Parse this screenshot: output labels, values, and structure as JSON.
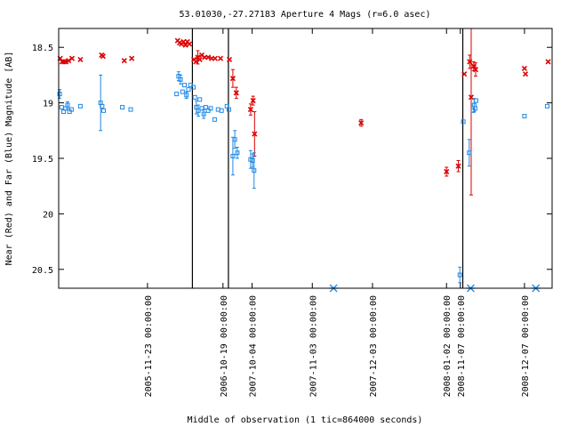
{
  "chart_data": {
    "type": "scatter",
    "title": "53.01030,-27.27183   Aperture 4 Mags (r=6.0 asec)",
    "xlabel": "Middle of observation (1 tic=864000 seconds)",
    "ylabel": "Near (Red) and Far (Blue) Magnitude [AB]",
    "ylim": [
      20.67,
      18.33
    ],
    "y_ticks": [
      18.5,
      19,
      19.5,
      20,
      20.5
    ],
    "y_tick_labels": [
      "18.5",
      "19",
      "19.5",
      "20",
      "20.5"
    ],
    "xlim": [
      0,
      100
    ],
    "x_ticks": [
      {
        "x": 18.0,
        "label": "2005-11-23 00:00:00"
      },
      {
        "x": 33.3,
        "label": "2006-10-19 00:00:00"
      },
      {
        "x": 39.2,
        "label": "2007-10-04 00:00:00"
      },
      {
        "x": 51.4,
        "label": "2007-11-03 00:00:00"
      },
      {
        "x": 63.6,
        "label": "2007-12-03 00:00:00"
      },
      {
        "x": 78.6,
        "label": "2008-01-02 00:00:00"
      },
      {
        "x": 81.4,
        "label": "2008-11-07 00:00:00"
      },
      {
        "x": 94.4,
        "label": "2008-12-07 00:00:00"
      }
    ],
    "separators_x": [
      27.1,
      34.4,
      81.9
    ],
    "series": [
      {
        "color": "#dd0000",
        "marker": "x",
        "points": [
          {
            "x": 0.3,
            "y": 18.6
          },
          {
            "x": 0.7,
            "y": 18.63
          },
          {
            "x": 1.1,
            "y": 18.63
          },
          {
            "x": 1.5,
            "y": 18.63
          },
          {
            "x": 2.0,
            "y": 18.62
          },
          {
            "x": 2.7,
            "y": 18.6
          },
          {
            "x": 4.4,
            "y": 18.61
          },
          {
            "x": 8.7,
            "y": 18.57
          },
          {
            "x": 9.0,
            "y": 18.58
          },
          {
            "x": 13.3,
            "y": 18.62
          },
          {
            "x": 14.8,
            "y": 18.6
          },
          {
            "x": 24.1,
            "y": 18.44
          },
          {
            "x": 24.5,
            "y": 18.46
          },
          {
            "x": 24.9,
            "y": 18.47
          },
          {
            "x": 25.3,
            "y": 18.45
          },
          {
            "x": 25.7,
            "y": 18.48
          },
          {
            "x": 26.1,
            "y": 18.45
          },
          {
            "x": 26.5,
            "y": 18.47
          },
          {
            "x": 27.4,
            "y": 18.61
          },
          {
            "x": 27.8,
            "y": 18.63
          },
          {
            "x": 28.2,
            "y": 18.59,
            "err": 0.06
          },
          {
            "x": 28.6,
            "y": 18.61
          },
          {
            "x": 29.0,
            "y": 18.57
          },
          {
            "x": 29.6,
            "y": 18.59
          },
          {
            "x": 30.3,
            "y": 18.59
          },
          {
            "x": 31.0,
            "y": 18.6
          },
          {
            "x": 31.7,
            "y": 18.6
          },
          {
            "x": 32.8,
            "y": 18.6
          },
          {
            "x": 34.6,
            "y": 18.61
          },
          {
            "x": 35.3,
            "y": 18.78,
            "err": 0.08
          },
          {
            "x": 36.0,
            "y": 18.91,
            "err": 0.05
          },
          {
            "x": 38.9,
            "y": 19.06,
            "err": 0.05
          },
          {
            "x": 39.4,
            "y": 18.98,
            "err": 0.04
          },
          {
            "x": 39.7,
            "y": 19.28,
            "err": 0.2
          },
          {
            "x": 61.3,
            "y": 19.18,
            "err": 0.03
          },
          {
            "x": 78.6,
            "y": 19.62,
            "err": 0.04
          },
          {
            "x": 81.0,
            "y": 19.57,
            "err": 0.05
          },
          {
            "x": 82.2,
            "y": 18.74
          },
          {
            "x": 83.3,
            "y": 18.63,
            "err": 0.06
          },
          {
            "x": 83.6,
            "y": 18.95,
            "err": 0.88
          },
          {
            "x": 84.1,
            "y": 18.67,
            "err": 0.04
          },
          {
            "x": 84.5,
            "y": 18.7,
            "err": 0.06
          },
          {
            "x": 94.4,
            "y": 18.69
          },
          {
            "x": 94.6,
            "y": 18.74
          },
          {
            "x": 99.2,
            "y": 18.63
          }
        ]
      },
      {
        "color": "#1e88e5",
        "marker": "square",
        "points": [
          {
            "x": 0.2,
            "y": 18.92,
            "err": 0.04
          },
          {
            "x": 0.6,
            "y": 19.04
          },
          {
            "x": 1.0,
            "y": 19.08
          },
          {
            "x": 1.4,
            "y": 19.05
          },
          {
            "x": 1.8,
            "y": 19.02,
            "err": 0.03
          },
          {
            "x": 2.2,
            "y": 19.08
          },
          {
            "x": 2.6,
            "y": 19.06
          },
          {
            "x": 4.4,
            "y": 19.03
          },
          {
            "x": 8.5,
            "y": 19.0,
            "err": 0.25
          },
          {
            "x": 8.8,
            "y": 19.03
          },
          {
            "x": 9.1,
            "y": 19.07
          },
          {
            "x": 12.9,
            "y": 19.04
          },
          {
            "x": 14.6,
            "y": 19.06
          },
          {
            "x": 23.9,
            "y": 18.92
          },
          {
            "x": 24.3,
            "y": 18.76,
            "err": 0.04
          },
          {
            "x": 24.7,
            "y": 18.79,
            "err": 0.04
          },
          {
            "x": 25.1,
            "y": 18.9
          },
          {
            "x": 25.5,
            "y": 18.84
          },
          {
            "x": 25.9,
            "y": 18.93,
            "err": 0.03
          },
          {
            "x": 26.3,
            "y": 18.88
          },
          {
            "x": 26.7,
            "y": 18.84
          },
          {
            "x": 27.3,
            "y": 18.86
          },
          {
            "x": 27.6,
            "y": 18.95
          },
          {
            "x": 27.9,
            "y": 19.04,
            "err": 0.06
          },
          {
            "x": 28.3,
            "y": 19.07,
            "err": 0.05
          },
          {
            "x": 28.6,
            "y": 18.97
          },
          {
            "x": 29.0,
            "y": 19.05
          },
          {
            "x": 29.4,
            "y": 19.1,
            "err": 0.04
          },
          {
            "x": 29.8,
            "y": 19.04
          },
          {
            "x": 30.3,
            "y": 19.07
          },
          {
            "x": 30.8,
            "y": 19.05
          },
          {
            "x": 31.6,
            "y": 19.15
          },
          {
            "x": 32.3,
            "y": 19.06
          },
          {
            "x": 33.0,
            "y": 19.07
          },
          {
            "x": 34.1,
            "y": 19.03
          },
          {
            "x": 34.5,
            "y": 19.06
          },
          {
            "x": 35.3,
            "y": 19.48,
            "err": 0.17
          },
          {
            "x": 35.7,
            "y": 19.33,
            "err": 0.08
          },
          {
            "x": 36.2,
            "y": 19.45,
            "err": 0.05
          },
          {
            "x": 38.9,
            "y": 19.51,
            "err": 0.08
          },
          {
            "x": 39.3,
            "y": 19.52,
            "err": 0.06
          },
          {
            "x": 39.6,
            "y": 19.61,
            "err": 0.16
          },
          {
            "x": 81.3,
            "y": 20.55,
            "err": 0.07
          },
          {
            "x": 82.0,
            "y": 19.17
          },
          {
            "x": 83.2,
            "y": 19.45,
            "err": 0.12
          },
          {
            "x": 84.0,
            "y": 19.07
          },
          {
            "x": 84.2,
            "y": 19.02,
            "err": 0.06
          },
          {
            "x": 84.4,
            "y": 19.05
          },
          {
            "x": 84.6,
            "y": 18.98
          },
          {
            "x": 94.4,
            "y": 19.12
          },
          {
            "x": 99.0,
            "y": 19.03
          }
        ]
      }
    ],
    "markers_bottom": [
      {
        "x": 55.7,
        "symbol": "asterisk",
        "color": "#1e88e5"
      },
      {
        "x": 83.5,
        "symbol": "asterisk",
        "color": "#1e88e5"
      },
      {
        "x": 96.7,
        "symbol": "asterisk",
        "color": "#1e88e5"
      }
    ],
    "grid": false,
    "legend": "none"
  }
}
